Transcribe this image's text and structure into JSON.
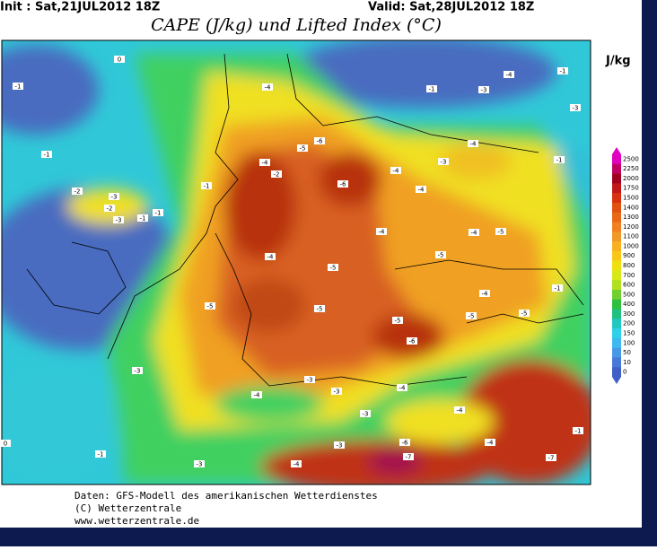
{
  "header": {
    "init": "Init : Sat,21JUL2012 18Z",
    "valid": "Valid: Sat,28JUL2012 18Z",
    "title": "CAPE (J/kg) und Lifted Index (°C)"
  },
  "legend": {
    "unit": "J/kg",
    "levels": [
      2500,
      2250,
      2000,
      1750,
      1500,
      1400,
      1300,
      1200,
      1100,
      1000,
      900,
      800,
      700,
      600,
      500,
      400,
      300,
      200,
      150,
      100,
      50,
      10,
      0
    ],
    "colors": [
      "#e000c0",
      "#c00060",
      "#a00020",
      "#c01818",
      "#d83010",
      "#e05010",
      "#e86818",
      "#f08020",
      "#f09828",
      "#f8b020",
      "#f8c818",
      "#f0e010",
      "#d8e818",
      "#b0e020",
      "#70d030",
      "#30c040",
      "#20c080",
      "#20c8c0",
      "#30d0e8",
      "#40b8f0",
      "#4898e8",
      "#4878d8",
      "#4060c8"
    ]
  },
  "map": {
    "lifted_index_labels": [
      0,
      -4,
      -4,
      -3,
      -1,
      -1,
      -3,
      -1,
      -1,
      -2,
      -3,
      -2,
      -3,
      -1,
      -1,
      -1,
      -4,
      -2,
      -6,
      -5,
      -6,
      -4,
      -4,
      -3,
      -4,
      -1,
      -4,
      -5,
      -5,
      -4,
      -5,
      -4,
      -5,
      -5,
      -5,
      -6,
      -5,
      -5,
      -4,
      -1,
      -3,
      -4,
      -3,
      -3,
      -4,
      -3,
      -4,
      -3,
      -6,
      -7,
      -4,
      -7,
      -4,
      -3,
      -1,
      0,
      -1
    ]
  },
  "footer": {
    "lines": [
      "Daten: GFS-Modell des amerikanischen Wetterdienstes",
      "(C) Wetterzentrale",
      "www.wetterzentrale.de"
    ]
  }
}
